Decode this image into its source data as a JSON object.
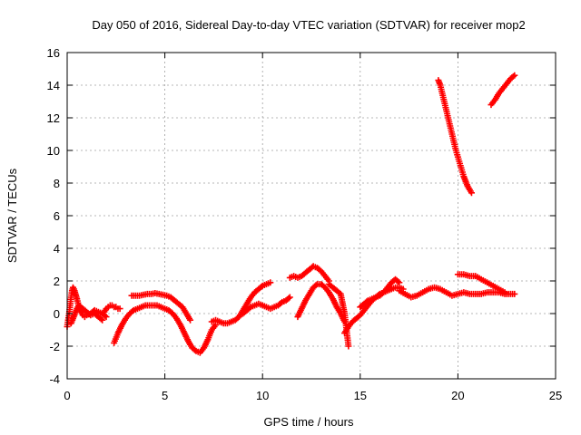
{
  "chart_data": {
    "type": "scatter",
    "title": "Day 050 of 2016, Sidereal Day-to-day VTEC variation (SDTVAR) for receiver mop2",
    "xlabel": "GPS time / hours",
    "ylabel": "SDTVAR / TECUs",
    "xlim": [
      0,
      25
    ],
    "ylim": [
      -4,
      16
    ],
    "xticks": [
      0,
      5,
      10,
      15,
      20,
      25
    ],
    "yticks": [
      -4,
      -2,
      0,
      2,
      4,
      6,
      8,
      10,
      12,
      14,
      16
    ],
    "grid": true,
    "legend": "none",
    "marker": "plus",
    "color": "#ff0000",
    "series": [
      {
        "x": [
          0.0,
          0.05,
          0.1,
          0.15,
          0.2,
          0.25,
          0.3,
          0.35,
          0.4,
          0.45,
          0.5,
          0.6,
          0.7,
          0.8,
          0.9,
          1.0,
          1.2,
          1.4,
          1.6,
          1.8,
          2.0
        ],
        "y": [
          -0.8,
          -0.4,
          0.0,
          0.5,
          1.0,
          1.4,
          1.6,
          1.5,
          1.3,
          1.1,
          0.9,
          0.4,
          0.1,
          -0.1,
          -0.2,
          -0.1,
          0.0,
          0.2,
          0.1,
          0.0,
          -0.2
        ]
      },
      {
        "x": [
          0.2,
          0.3,
          0.4,
          0.5,
          0.6,
          0.8,
          1.0,
          1.2,
          1.4,
          1.6,
          1.8
        ],
        "y": [
          -0.6,
          -0.3,
          0.0,
          0.3,
          0.5,
          0.3,
          0.1,
          -0.1,
          0.0,
          -0.2,
          -0.4
        ]
      },
      {
        "x": [
          1.8,
          1.9,
          2.0,
          2.1,
          2.2,
          2.3,
          2.4,
          2.5,
          2.6,
          2.7
        ],
        "y": [
          0.0,
          0.1,
          0.3,
          0.4,
          0.5,
          0.5,
          0.4,
          0.4,
          0.3,
          0.3
        ]
      },
      {
        "x": [
          2.4,
          2.6,
          2.8,
          3.0,
          3.2,
          3.4,
          3.6,
          3.8,
          4.0,
          4.2,
          4.4,
          4.6,
          4.8,
          5.0,
          5.2,
          5.4,
          5.6,
          5.8,
          6.0,
          6.2,
          6.4,
          6.6,
          6.8,
          7.0,
          7.2,
          7.4,
          7.6
        ],
        "y": [
          -1.8,
          -1.2,
          -0.7,
          -0.3,
          0.0,
          0.2,
          0.3,
          0.4,
          0.5,
          0.5,
          0.5,
          0.5,
          0.4,
          0.3,
          0.2,
          0.0,
          -0.3,
          -0.7,
          -1.2,
          -1.7,
          -2.1,
          -2.3,
          -2.4,
          -2.1,
          -1.6,
          -1.0,
          -0.7
        ]
      },
      {
        "x": [
          3.3,
          3.5,
          3.7,
          3.9,
          4.1,
          4.3,
          4.5,
          4.7,
          4.9,
          5.1,
          5.3,
          5.5,
          5.7,
          5.9,
          6.1,
          6.3
        ],
        "y": [
          1.1,
          1.1,
          1.1,
          1.15,
          1.2,
          1.2,
          1.25,
          1.2,
          1.15,
          1.1,
          1.0,
          0.8,
          0.6,
          0.4,
          0.0,
          -0.4
        ]
      },
      {
        "x": [
          7.4,
          7.6,
          7.8,
          8.0,
          8.2,
          8.4,
          8.6,
          8.8,
          9.0,
          9.2,
          9.4,
          9.6,
          9.8,
          10.0,
          10.2,
          10.4
        ],
        "y": [
          -0.5,
          -0.4,
          -0.5,
          -0.6,
          -0.6,
          -0.5,
          -0.4,
          -0.2,
          0.2,
          0.6,
          1.0,
          1.3,
          1.5,
          1.7,
          1.8,
          1.9
        ]
      },
      {
        "x": [
          9.0,
          9.2,
          9.4,
          9.6,
          9.8,
          10.0,
          10.2,
          10.4,
          10.6,
          10.8,
          11.0,
          11.2,
          11.4
        ],
        "y": [
          0.0,
          0.2,
          0.4,
          0.5,
          0.6,
          0.5,
          0.4,
          0.3,
          0.4,
          0.5,
          0.7,
          0.8,
          1.0
        ]
      },
      {
        "x": [
          11.4,
          11.6,
          11.8,
          12.0,
          12.2,
          12.4,
          12.6,
          12.8,
          13.0,
          13.2,
          13.4
        ],
        "y": [
          2.2,
          2.3,
          2.2,
          2.3,
          2.5,
          2.7,
          2.9,
          2.8,
          2.6,
          2.3,
          2.0
        ]
      },
      {
        "x": [
          11.8,
          12.0,
          12.2,
          12.4,
          12.6,
          12.8,
          13.0,
          13.2,
          13.4,
          13.6,
          13.8,
          14.0,
          14.2
        ],
        "y": [
          -0.2,
          0.3,
          0.8,
          1.2,
          1.6,
          1.8,
          1.8,
          1.6,
          1.3,
          0.9,
          0.4,
          0.0,
          -0.5
        ]
      },
      {
        "x": [
          13.4,
          13.6,
          13.8,
          14.0,
          14.1,
          14.2,
          14.3,
          14.4
        ],
        "y": [
          1.8,
          1.6,
          1.4,
          1.2,
          0.6,
          0.0,
          -1.0,
          -2.0
        ]
      },
      {
        "x": [
          14.2,
          14.4,
          14.6,
          14.8,
          15.0,
          15.2,
          15.4,
          15.6,
          15.8,
          16.0,
          16.2,
          16.4,
          16.6,
          16.8,
          17.0,
          17.2
        ],
        "y": [
          -1.2,
          -0.8,
          -0.5,
          -0.3,
          -0.1,
          0.2,
          0.5,
          0.8,
          1.0,
          1.2,
          1.3,
          1.4,
          1.5,
          1.6,
          1.6,
          1.5
        ]
      },
      {
        "x": [
          15.0,
          15.2,
          15.4,
          15.6,
          15.8,
          16.0,
          16.2,
          16.4,
          16.6,
          16.8,
          17.0
        ],
        "y": [
          0.4,
          0.6,
          0.8,
          0.9,
          1.0,
          1.1,
          1.3,
          1.6,
          1.9,
          2.1,
          1.9
        ]
      },
      {
        "x": [
          17.0,
          17.3,
          17.6,
          17.9,
          18.2,
          18.5,
          18.8,
          19.1,
          19.4,
          19.7,
          20.0,
          20.3,
          20.6,
          20.9,
          21.2,
          21.5,
          21.8,
          22.1,
          22.4,
          22.7,
          22.9
        ],
        "y": [
          1.4,
          1.2,
          1.0,
          1.1,
          1.3,
          1.5,
          1.6,
          1.5,
          1.3,
          1.1,
          1.2,
          1.3,
          1.2,
          1.2,
          1.2,
          1.3,
          1.3,
          1.3,
          1.2,
          1.2,
          1.2
        ]
      },
      {
        "x": [
          20.0,
          20.3,
          20.6,
          20.9,
          21.2,
          21.5,
          21.8,
          22.1,
          22.4
        ],
        "y": [
          2.4,
          2.4,
          2.3,
          2.3,
          2.1,
          1.9,
          1.7,
          1.5,
          1.3
        ]
      },
      {
        "x": [
          19.0,
          19.1,
          19.2,
          19.3,
          19.4,
          19.5,
          19.6,
          19.7,
          19.8,
          19.9,
          20.0,
          20.1,
          20.2,
          20.3,
          20.4,
          20.5,
          20.6,
          20.7
        ],
        "y": [
          14.3,
          14.0,
          13.5,
          13.0,
          12.5,
          12.0,
          11.5,
          11.0,
          10.5,
          10.0,
          9.6,
          9.2,
          8.8,
          8.4,
          8.1,
          7.8,
          7.6,
          7.4
        ]
      },
      {
        "x": [
          21.7,
          21.9,
          22.1,
          22.3,
          22.5,
          22.7,
          22.9
        ],
        "y": [
          12.8,
          13.1,
          13.5,
          13.8,
          14.1,
          14.4,
          14.6
        ]
      }
    ]
  }
}
